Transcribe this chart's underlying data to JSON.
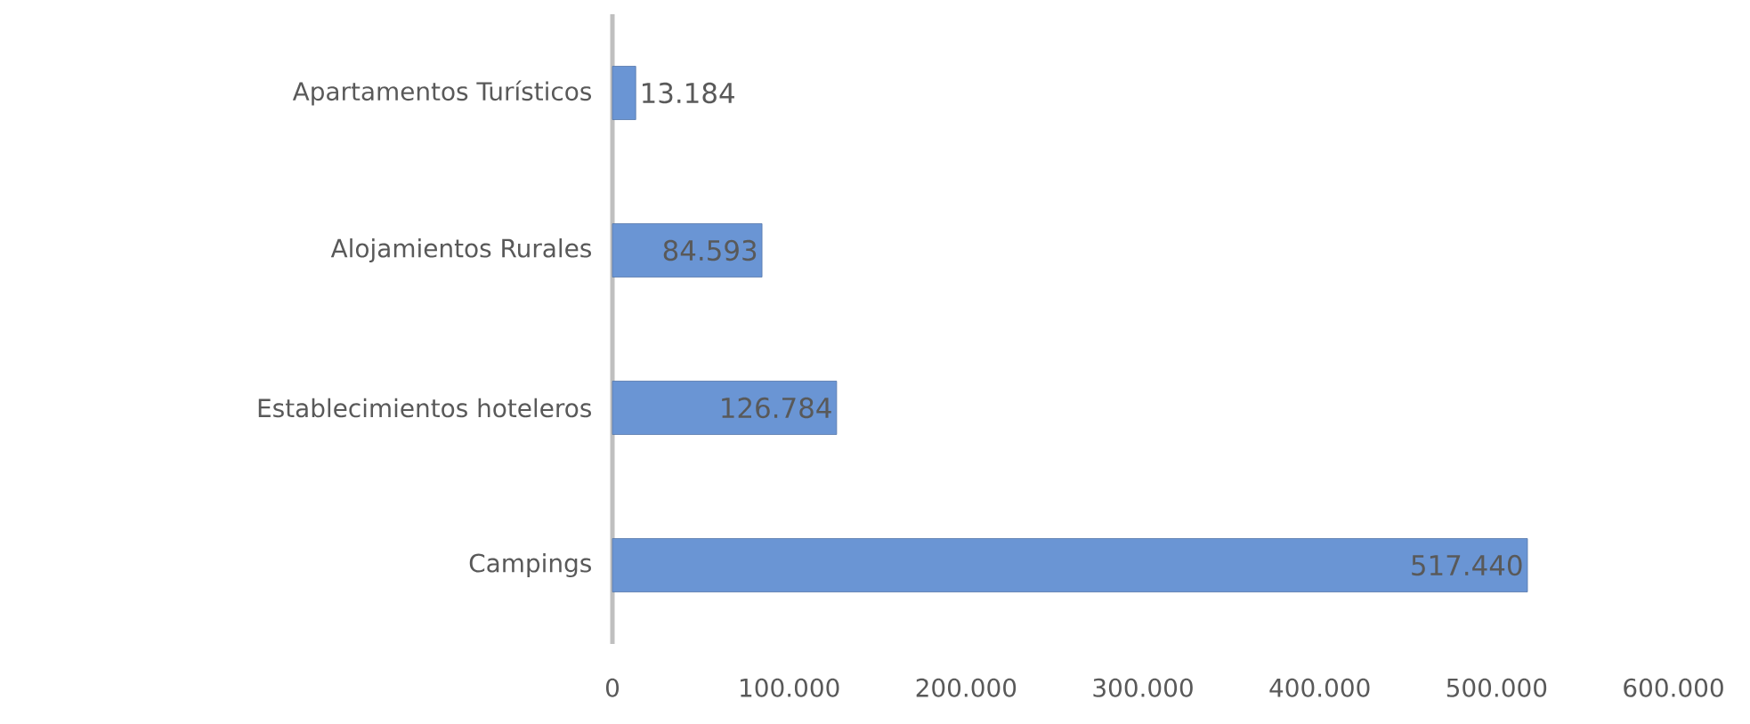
{
  "chart_data": {
    "type": "bar",
    "orientation": "horizontal",
    "categories": [
      "Apartamentos Turísticos",
      "Alojamientos Rurales",
      "Establecimientos hoteleros",
      "Campings"
    ],
    "values": [
      13184,
      84593,
      126784,
      517440
    ],
    "value_labels": [
      "13.184",
      "84.593",
      "126.784",
      "517.440"
    ],
    "color": "#6a95d4",
    "xlim": [
      0,
      600000
    ],
    "xticks": [
      0,
      {
        "value": 100000,
        "label": "100.000"
      },
      {
        "value": 200000,
        "label": "200.000"
      },
      {
        "value": 300000,
        "label": "300.000"
      },
      {
        "value": 400000,
        "label": "400.000"
      },
      {
        "value": 500000,
        "label": "500.000"
      },
      {
        "value": 600000,
        "label": "600.000"
      }
    ],
    "grid": false
  }
}
